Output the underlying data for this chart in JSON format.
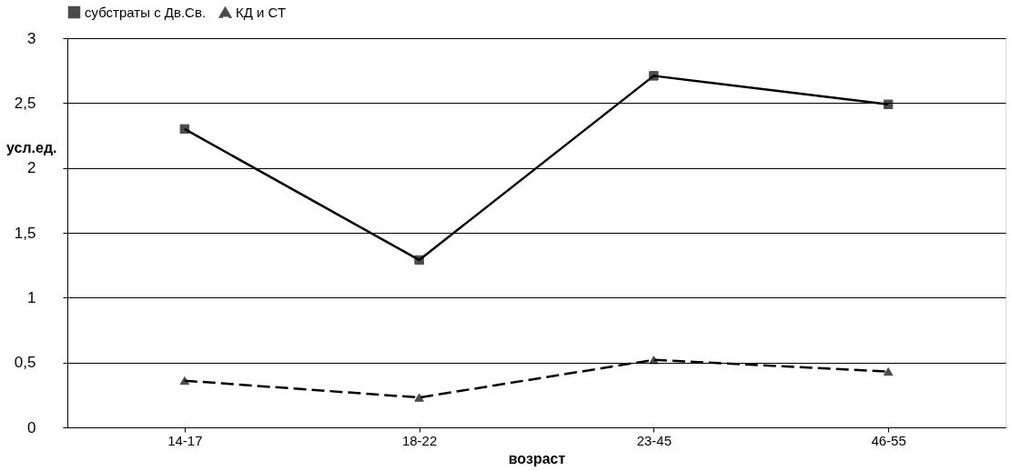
{
  "chart_data": {
    "type": "line",
    "xlabel": "возраст",
    "ylabel": "усл.ед.",
    "categories": [
      "14-17",
      "18-22",
      "23-45",
      "46-55"
    ],
    "series": [
      {
        "name": "субстраты с Дв.Св.",
        "color": "#000000",
        "marker": "square",
        "line_style": "solid",
        "values": [
          2.3,
          1.29,
          2.71,
          2.49
        ]
      },
      {
        "name": "КД и СТ",
        "color": "#000000",
        "marker": "triangle",
        "line_style": "dashed",
        "values": [
          0.36,
          0.23,
          0.52,
          0.43
        ]
      }
    ],
    "ylim": [
      0,
      3
    ],
    "yticks": [
      0,
      {
        "value": 0.5,
        "label": "0,5"
      },
      1,
      {
        "value": 1.5,
        "label": "1,5"
      },
      2,
      {
        "value": 2.5,
        "label": "2,5"
      },
      3
    ],
    "grid": "y",
    "legend": "top"
  }
}
